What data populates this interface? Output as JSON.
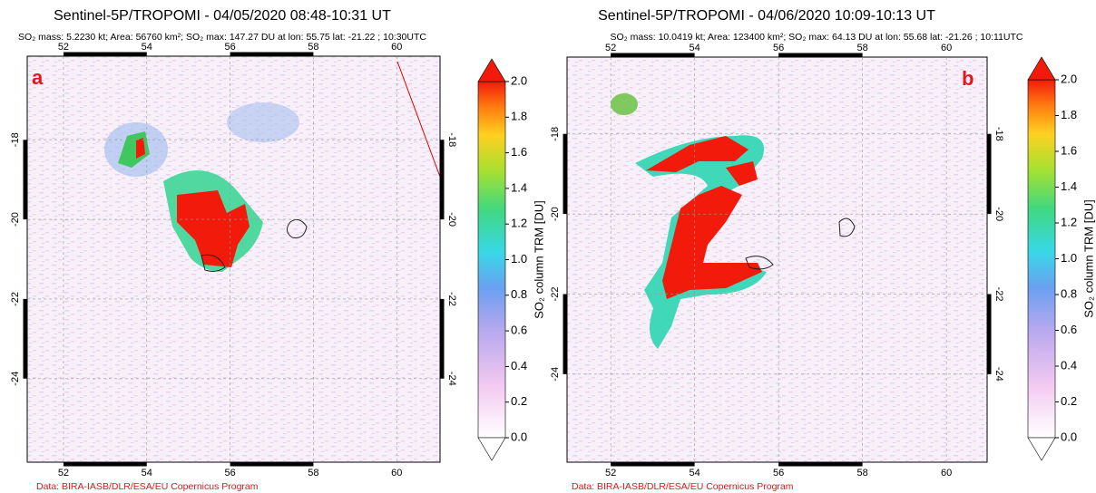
{
  "panels": [
    {
      "label": "a",
      "title": "Sentinel-5P/TROPOMI - 04/05/2020 08:48-10:31 UT",
      "subtitle": "SO₂ mass: 5.2230 kt; Area: 56760 km²; SO₂ max: 147.27 DU at lon: 55.75 lat: -21.22 ; 10:30UTC",
      "xlim": [
        51.13,
        61.04
      ],
      "ylim": [
        -26.1,
        -15.9
      ],
      "xticks": [
        52,
        54,
        56,
        58,
        60
      ],
      "yticks": [
        -18,
        -20,
        -22,
        -24
      ],
      "colorbar": {
        "label": "SO₂ column TRM [DU]",
        "lim": [
          0,
          2
        ],
        "ticks": [
          {
            "value": 0,
            "label": "0.0"
          },
          {
            "value": 0.2,
            "label": "0.2"
          },
          {
            "value": 0.4,
            "label": "0.4"
          },
          {
            "value": 0.6,
            "label": "0.6"
          },
          {
            "value": 0.8,
            "label": "0.8"
          },
          {
            "value": 1,
            "label": "1.0"
          },
          {
            "value": 1.2,
            "label": "1.2"
          },
          {
            "value": 1.4,
            "label": "1.4"
          },
          {
            "value": 1.6,
            "label": "1.6"
          },
          {
            "value": 1.8,
            "label": "1.8"
          },
          {
            "value": 2,
            "label": "2.0"
          }
        ]
      },
      "credit": "Data: BIRA-IASB/DLR/ESA/EU Copernicus Program"
    },
    {
      "label": "b",
      "title": "Sentinel-5P/TROPOMI - 04/06/2020 10:09-10:13 UT",
      "subtitle": "SO₂ mass: 10.0419 kt; Area: 123400 km²; SO₂ max: 64.13 DU at lon: 55.68 lat: -21.26 ; 10:11UTC",
      "xlim": [
        50.96,
        60.97
      ],
      "ylim": [
        -26.2,
        -16.08
      ],
      "xticks": [
        52,
        54,
        56,
        58,
        60
      ],
      "yticks": [
        -18,
        -20,
        -22,
        -24
      ],
      "colorbar": {
        "label": "SO₂ column TRM [DU]",
        "lim": [
          0,
          2
        ],
        "ticks": [
          {
            "value": 0,
            "label": "0.0"
          },
          {
            "value": 0.2,
            "label": "0.2"
          },
          {
            "value": 0.4,
            "label": "0.4"
          },
          {
            "value": 0.6,
            "label": "0.6"
          },
          {
            "value": 0.8,
            "label": "0.8"
          },
          {
            "value": 1,
            "label": "1.0"
          },
          {
            "value": 1.2,
            "label": "1.2"
          },
          {
            "value": 1.4,
            "label": "1.4"
          },
          {
            "value": 1.6,
            "label": "1.6"
          },
          {
            "value": 1.8,
            "label": "1.8"
          },
          {
            "value": 2,
            "label": "2.0"
          }
        ]
      },
      "credit": "Data: BIRA-IASB/DLR/ESA/EU Copernicus Program"
    }
  ]
}
